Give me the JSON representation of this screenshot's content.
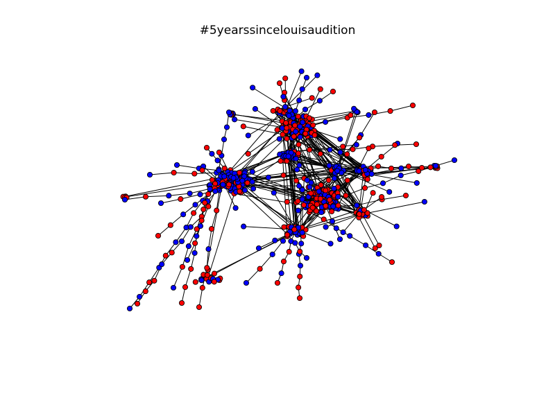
{
  "title": "#5yearssincelouisaudition",
  "colors": {
    "group_a": "#0000ff",
    "group_b": "#ff0000",
    "edge": "#000000",
    "node_outline": "#000000"
  }
}
